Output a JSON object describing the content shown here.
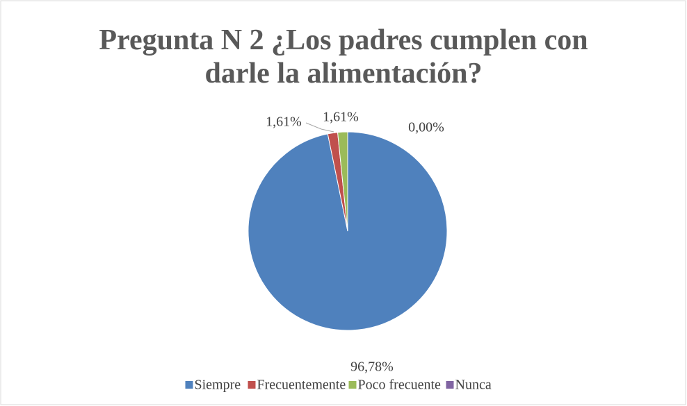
{
  "chart_data": {
    "type": "pie",
    "title": "Pregunta N 2 ¿Los padres cumplen con darle la alimentación?",
    "categories": [
      "Siempre",
      "Frecuentemente",
      "Poco frecuente",
      "Nunca"
    ],
    "values": [
      96.78,
      1.61,
      1.61,
      0
    ],
    "value_labels": [
      "96,78%",
      "1,61%",
      "1,61%",
      "0,00%"
    ],
    "colors": [
      "#4f81bd",
      "#c0504d",
      "#9bbb59",
      "#8064a2"
    ],
    "legend": "bottom"
  }
}
